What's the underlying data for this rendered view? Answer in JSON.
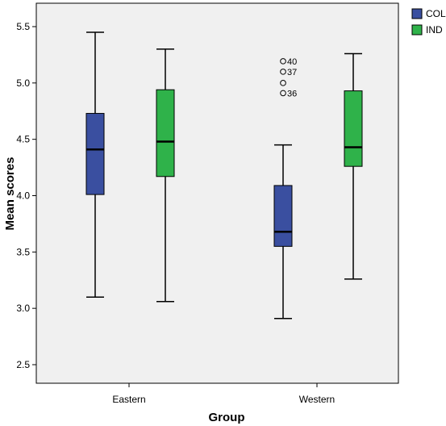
{
  "chart_data": {
    "type": "box",
    "xlabel": "Group",
    "ylabel": "Mean scores",
    "ylim": [
      2.3,
      5.7
    ],
    "yticks": [
      "2.5",
      "3.0",
      "3.5",
      "4.0",
      "4.5",
      "5.0",
      "5.5"
    ],
    "categories": [
      "Eastern",
      "Western"
    ],
    "grid": false,
    "legend_position": "right",
    "series": [
      {
        "name": "COL",
        "color": "#3a4fa0",
        "boxes": [
          {
            "category": "Eastern",
            "min": 3.1,
            "q1": 4.01,
            "median": 4.41,
            "q3": 4.73,
            "max": 5.45,
            "outliers": []
          },
          {
            "category": "Western",
            "min": 2.91,
            "q1": 3.55,
            "median": 3.68,
            "q3": 4.09,
            "max": 4.45,
            "outliers": [
              {
                "value": 5.1,
                "label": "40"
              },
              {
                "value": 5.1,
                "label": "37"
              },
              {
                "value": 5.0,
                "label": ""
              },
              {
                "value": 4.91,
                "label": "36"
              }
            ]
          }
        ]
      },
      {
        "name": "IND",
        "color": "#2fb24a",
        "boxes": [
          {
            "category": "Eastern",
            "min": 3.06,
            "q1": 4.17,
            "median": 4.48,
            "q3": 4.94,
            "max": 5.3,
            "outliers": []
          },
          {
            "category": "Western",
            "min": 3.26,
            "q1": 4.26,
            "median": 4.43,
            "q3": 4.93,
            "max": 5.26,
            "outliers": []
          }
        ]
      }
    ]
  }
}
